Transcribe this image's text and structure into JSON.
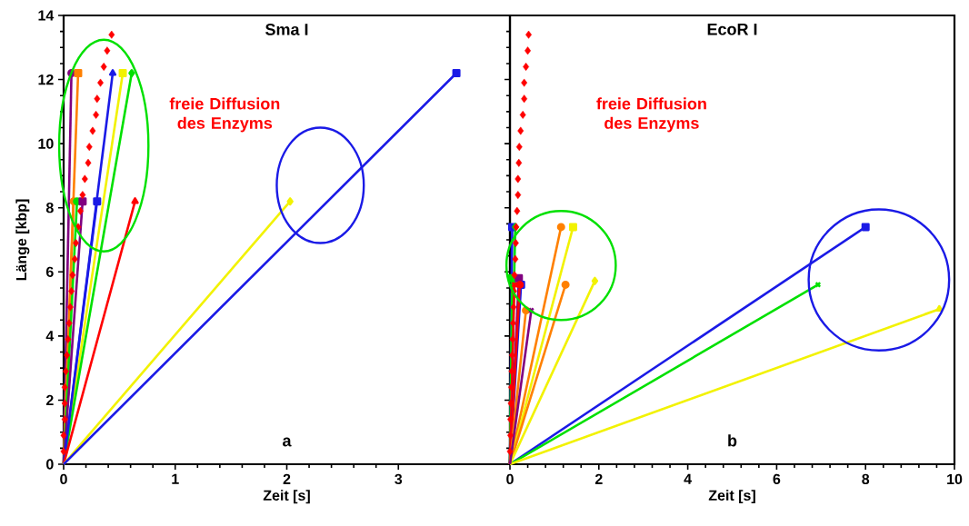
{
  "chart_data": [
    {
      "type": "line",
      "title": "Sma I",
      "xlabel": "Zeit [s]",
      "ylabel": "Länge [kbp]",
      "annotations": [
        "a"
      ],
      "xlim": [
        0,
        4
      ],
      "ylim": [
        0,
        14
      ],
      "xticks": [
        0,
        1,
        2,
        3
      ],
      "yticks": [
        0,
        2,
        4,
        6,
        8,
        10,
        12,
        14
      ],
      "series": [
        {
          "color": "#800080",
          "marker": "circle",
          "x": [
            0,
            0.07
          ],
          "values": [
            0,
            12.2
          ]
        },
        {
          "color": "#ff8000",
          "marker": "square",
          "x": [
            0,
            0.13
          ],
          "values": [
            0,
            12.2
          ]
        },
        {
          "color": "#1a1ae6",
          "marker": "triangle",
          "x": [
            0,
            0.44
          ],
          "values": [
            0,
            12.2
          ]
        },
        {
          "color": "#f2f200",
          "marker": "square",
          "x": [
            0,
            0.53
          ],
          "values": [
            0,
            12.2
          ]
        },
        {
          "color": "#00e000",
          "marker": "diamond",
          "x": [
            0,
            0.61
          ],
          "values": [
            0,
            12.2
          ]
        },
        {
          "color": "#ff8000",
          "marker": "circle",
          "x": [
            0,
            0.09
          ],
          "values": [
            0,
            8.2
          ]
        },
        {
          "color": "#00e000",
          "marker": "circle",
          "x": [
            0,
            0.12
          ],
          "values": [
            0,
            8.2
          ]
        },
        {
          "color": "#800080",
          "marker": "square",
          "x": [
            0,
            0.17
          ],
          "values": [
            0,
            8.2
          ]
        },
        {
          "color": "#1a1ae6",
          "marker": "square",
          "x": [
            0,
            0.3
          ],
          "values": [
            0,
            8.2
          ]
        },
        {
          "color": "#ff0000",
          "marker": "triangle",
          "x": [
            0,
            0.64
          ],
          "values": [
            0,
            8.2
          ]
        },
        {
          "color": "#f2f200",
          "marker": "diamond",
          "x": [
            0,
            2.03
          ],
          "values": [
            0,
            8.2
          ]
        },
        {
          "color": "#1a1ae6",
          "marker": "square",
          "x": [
            0,
            3.52
          ],
          "values": [
            0,
            12.2
          ]
        },
        {
          "type": "scatter",
          "name": "freie Diffusion des Enzyms",
          "color": "#ff0000",
          "marker": "diamond",
          "x": [
            0.43,
            0.39,
            0.36,
            0.33,
            0.3,
            0.29,
            0.26,
            0.23,
            0.22,
            0.19,
            0.17,
            0.15,
            0.13,
            0.11,
            0.1,
            0.08,
            0.07,
            0.06,
            0.05,
            0.04,
            0.03,
            0.02,
            0.01,
            0.01,
            0.01,
            0.0,
            0.0
          ],
          "values": [
            13.4,
            12.9,
            12.4,
            11.9,
            11.4,
            10.9,
            10.4,
            9.9,
            9.4,
            8.9,
            8.4,
            7.9,
            7.4,
            6.9,
            6.4,
            5.9,
            5.4,
            4.9,
            4.4,
            3.9,
            3.4,
            2.9,
            2.4,
            1.9,
            1.4,
            0.9,
            0.4
          ]
        }
      ]
    },
    {
      "type": "line",
      "title": "EcoR I",
      "xlabel": "Zeit [s]",
      "annotations": [
        "b"
      ],
      "tick_labels": "x",
      "xlim": [
        0,
        10
      ],
      "ylim": [
        0,
        14
      ],
      "xticks": [
        0,
        2,
        4,
        6,
        8,
        10
      ],
      "yticks": [
        0,
        2,
        4,
        6,
        8,
        10,
        12,
        14
      ],
      "series": [
        {
          "color": "#1a1ae6",
          "marker": "square",
          "x": [
            0,
            0.05
          ],
          "values": [
            0,
            7.4
          ]
        },
        {
          "color": "#00e000",
          "marker": "diamond",
          "x": [
            0,
            0.12
          ],
          "values": [
            0,
            7.4
          ]
        },
        {
          "color": "#ff8000",
          "marker": "circle",
          "x": [
            0,
            1.15
          ],
          "values": [
            0,
            7.4
          ]
        },
        {
          "color": "#f2f200",
          "marker": "square",
          "x": [
            0,
            1.42
          ],
          "values": [
            0,
            7.4
          ]
        },
        {
          "color": "#1a1ae6",
          "marker": "square",
          "x": [
            0,
            8.0
          ],
          "values": [
            0,
            7.4
          ]
        },
        {
          "color": "#00e000",
          "marker": "square",
          "x": [
            0,
            0.05
          ],
          "values": [
            0,
            5.8
          ]
        },
        {
          "color": "#ff0000",
          "marker": "cross",
          "x": [
            0,
            0.1
          ],
          "values": [
            0,
            5.6
          ]
        },
        {
          "color": "#800080",
          "marker": "square",
          "x": [
            0,
            0.2
          ],
          "values": [
            0,
            5.8
          ]
        },
        {
          "color": "#1a1ae6",
          "marker": "square",
          "x": [
            0,
            0.25
          ],
          "values": [
            0,
            5.6
          ]
        },
        {
          "color": "#ff0000",
          "marker": "circle",
          "x": [
            0,
            0.22
          ],
          "values": [
            0,
            5.6
          ]
        },
        {
          "color": "#ff8000",
          "marker": "circle",
          "x": [
            0,
            1.25
          ],
          "values": [
            0,
            5.6
          ]
        },
        {
          "color": "#f2f200",
          "marker": "diamond",
          "x": [
            0,
            1.91
          ],
          "values": [
            0,
            5.72
          ]
        },
        {
          "color": "#00e000",
          "marker": "cross",
          "x": [
            0,
            6.93
          ],
          "values": [
            0,
            5.6
          ]
        },
        {
          "color": "#f2f200",
          "marker": "triangle",
          "x": [
            0,
            9.66
          ],
          "values": [
            0,
            4.84
          ]
        },
        {
          "color": "#ff8000",
          "marker": "circle",
          "x": [
            0,
            0.36
          ],
          "values": [
            0,
            4.8
          ]
        },
        {
          "color": "#800080",
          "marker": "cross",
          "x": [
            0,
            0.48
          ],
          "values": [
            0,
            4.8
          ]
        },
        {
          "type": "scatter",
          "name": "freie Diffusion des Enzyms",
          "color": "#ff0000",
          "marker": "diamond",
          "x": [
            0.42,
            0.4,
            0.36,
            0.32,
            0.32,
            0.29,
            0.24,
            0.21,
            0.2,
            0.18,
            0.18,
            0.16,
            0.14,
            0.13,
            0.12,
            0.1,
            0.09,
            0.08,
            0.07,
            0.06,
            0.05,
            0.04,
            0.03,
            0.02,
            0.01,
            0.01,
            0.0
          ],
          "values": [
            13.4,
            12.9,
            12.4,
            11.9,
            11.4,
            10.9,
            10.4,
            9.9,
            9.4,
            8.9,
            8.4,
            7.9,
            7.4,
            6.9,
            6.4,
            5.9,
            5.4,
            4.9,
            4.4,
            3.9,
            3.4,
            2.9,
            2.4,
            1.9,
            1.4,
            0.9,
            0.4
          ]
        }
      ]
    }
  ]
}
